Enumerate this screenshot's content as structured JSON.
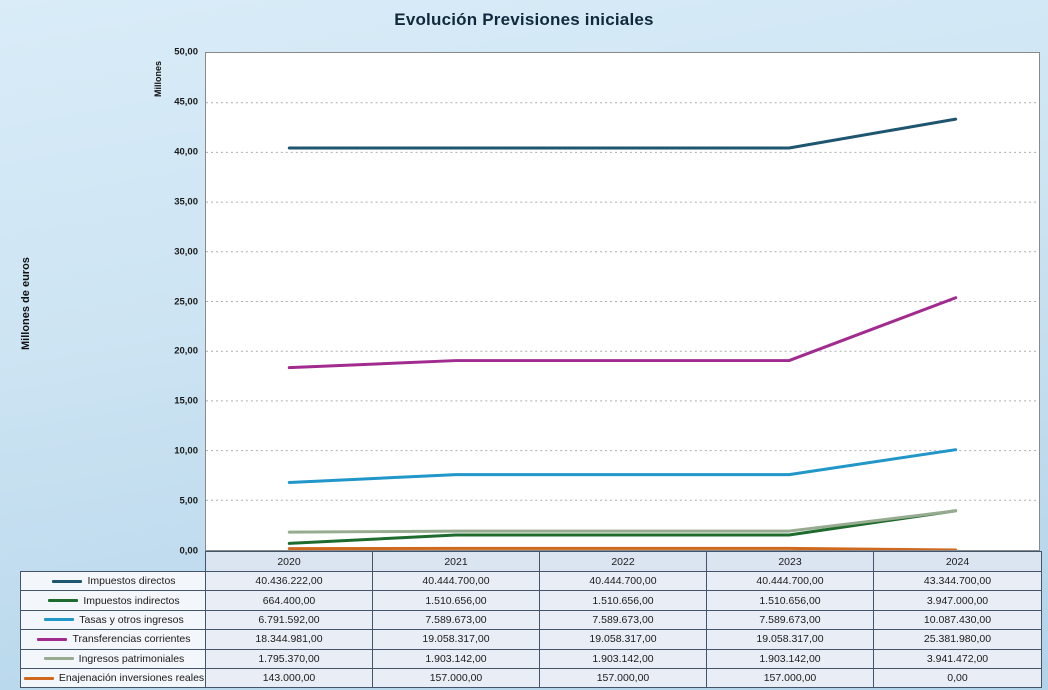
{
  "title": "Evolución Previsiones iniciales",
  "y_axis_label": "Millones de euros",
  "y_axis_unit": "Millones",
  "chart_data": {
    "type": "line",
    "title": "Evolución Previsiones iniciales",
    "xlabel": "",
    "ylabel": "Millones de euros",
    "y_unit": "Millones",
    "categories": [
      "2020",
      "2021",
      "2022",
      "2023",
      "2024"
    ],
    "ylim": [
      0,
      50
    ],
    "ytick_step": 5,
    "ytick_labels": [
      "0,00",
      "5,00",
      "10,00",
      "15,00",
      "20,00",
      "25,00",
      "30,00",
      "35,00",
      "40,00",
      "45,00",
      "50,00"
    ],
    "grid": "horizontal-dotted",
    "legend_position": "table-left",
    "series": [
      {
        "id": "impuestos-directos",
        "name": "Impuestos directos",
        "color": "#1d566e",
        "values": [
          40.436222,
          40.4447,
          40.4447,
          40.4447,
          43.3447
        ]
      },
      {
        "id": "impuestos-indirectos",
        "name": "Impuestos indirectos",
        "color": "#1e6b2e",
        "values": [
          0.6644,
          1.510656,
          1.510656,
          1.510656,
          3.947
        ]
      },
      {
        "id": "tasas-y-otros-ingresos",
        "name": "Tasas y otros ingresos",
        "color": "#2196c8",
        "values": [
          6.791592,
          7.589673,
          7.589673,
          7.589673,
          10.08743
        ]
      },
      {
        "id": "transferencias-corrientes",
        "name": "Transferencias corrientes",
        "color": "#a12b8e",
        "values": [
          18.344981,
          19.058317,
          19.058317,
          19.058317,
          25.38198
        ]
      },
      {
        "id": "ingresos-patrimoniales",
        "name": "Ingresos patrimoniales",
        "color": "#97ab90",
        "values": [
          1.79537,
          1.903142,
          1.903142,
          1.903142,
          3.941472
        ]
      },
      {
        "id": "enajenacion-inversiones-reales",
        "name": "Enajenación inversiones reales",
        "color": "#d0691e",
        "values": [
          0.143,
          0.157,
          0.157,
          0.157,
          0.0
        ]
      }
    ]
  },
  "table": {
    "year_headers": [
      "2020",
      "2021",
      "2022",
      "2023",
      "2024"
    ],
    "rows": [
      {
        "label": "Impuestos directos",
        "color": "#1d566e",
        "values": [
          "40.436.222,00",
          "40.444.700,00",
          "40.444.700,00",
          "40.444.700,00",
          "43.344.700,00"
        ]
      },
      {
        "label": "Impuestos indirectos",
        "color": "#1e6b2e",
        "values": [
          "664.400,00",
          "1.510.656,00",
          "1.510.656,00",
          "1.510.656,00",
          "3.947.000,00"
        ]
      },
      {
        "label": "Tasas y otros ingresos",
        "color": "#2196c8",
        "values": [
          "6.791.592,00",
          "7.589.673,00",
          "7.589.673,00",
          "7.589.673,00",
          "10.087.430,00"
        ]
      },
      {
        "label": "Transferencias corrientes",
        "color": "#a12b8e",
        "values": [
          "18.344.981,00",
          "19.058.317,00",
          "19.058.317,00",
          "19.058.317,00",
          "25.381.980,00"
        ]
      },
      {
        "label": "Ingresos patrimoniales",
        "color": "#97ab90",
        "values": [
          "1.795.370,00",
          "1.903.142,00",
          "1.903.142,00",
          "1.903.142,00",
          "3.941.472,00"
        ]
      },
      {
        "label": "Enajenación inversiones reales",
        "color": "#d0691e",
        "values": [
          "143.000,00",
          "157.000,00",
          "157.000,00",
          "157.000,00",
          "0,00"
        ]
      }
    ]
  }
}
